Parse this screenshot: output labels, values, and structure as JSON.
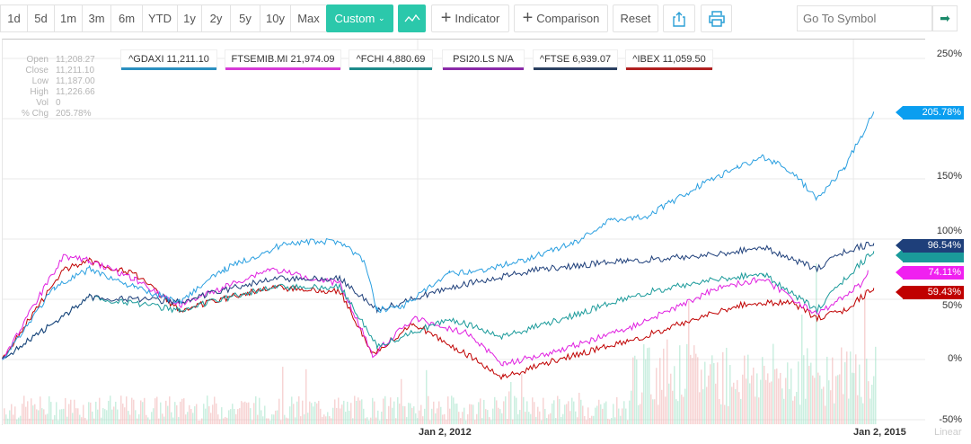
{
  "toolbar": {
    "ranges": [
      "1d",
      "5d",
      "1m",
      "3m",
      "6m",
      "YTD",
      "1y",
      "2y",
      "5y",
      "10y",
      "Max"
    ],
    "custom": "Custom",
    "indicator": "Indicator",
    "comparison": "Comparison",
    "reset": "Reset",
    "search_placeholder": "Go To Symbol"
  },
  "info": {
    "open_label": "Open",
    "open": "11,208.27",
    "close_label": "Close",
    "close": "11,211.10",
    "low_label": "Low",
    "low": "11,187.00",
    "high_label": "High",
    "high": "11,226.66",
    "vol_label": "Vol",
    "vol": "0",
    "chg_label": "% Chg",
    "chg": "205.78%"
  },
  "legend": [
    {
      "label": "^GDAXI 11,211.10",
      "color": "#2a8fc0"
    },
    {
      "label": "FTSEMIB.MI 21,974.09",
      "color": "#d63ad6"
    },
    {
      "label": "^FCHI 4,880.69",
      "color": "#1d8a8a"
    },
    {
      "label": "PSI20.LS N/A",
      "color": "#8a2aa8"
    },
    {
      "label": "^FTSE 6,939.07",
      "color": "#2a3f60"
    },
    {
      "label": "^IBEX 11,059.50",
      "color": "#b02020"
    }
  ],
  "chart_data": {
    "type": "line",
    "ylabel": "% change",
    "ylim": [
      -50,
      250
    ],
    "yticks": [
      "250%",
      "150%",
      "100%",
      "50%",
      "0%",
      "-50%"
    ],
    "xlim": [
      2009.14,
      2015.3
    ],
    "xticks": [
      {
        "x": 2012.0,
        "label": "Jan 2, 2012"
      },
      {
        "x": 2015.0,
        "label": "Jan 2, 2015"
      }
    ],
    "scale_label": "Linear",
    "series": [
      {
        "name": "^GDAXI",
        "color": "#2a9fe0",
        "last": "205.78%",
        "x": [
          2009.14,
          2009.5,
          2009.74,
          2010.05,
          2010.36,
          2010.67,
          2011.1,
          2011.47,
          2011.63,
          2011.72,
          2011.91,
          2012.22,
          2012.46,
          2012.71,
          2013.08,
          2013.33,
          2013.58,
          2013.95,
          2014.2,
          2014.38,
          2014.57,
          2014.75,
          2014.94,
          2015.06,
          2015.14
        ],
        "y": [
          0,
          60,
          75,
          60,
          48,
          75,
          97,
          98,
          82,
          41,
          45,
          71,
          75,
          82,
          97,
          116,
          119,
          145,
          160,
          168,
          157,
          133,
          160,
          187,
          205.78
        ]
      },
      {
        "name": "^FTSE",
        "color": "#1e3f7a",
        "last": "96.54%",
        "x": [
          2009.14,
          2009.74,
          2010.36,
          2010.98,
          2011.47,
          2011.72,
          2012.22,
          2012.84,
          2013.45,
          2013.95,
          2014.38,
          2014.75,
          2014.94,
          2015.14
        ],
        "y": [
          0,
          52,
          48,
          67,
          67,
          41,
          60,
          75,
          82,
          86,
          93,
          75,
          90,
          96.54
        ]
      },
      {
        "name": "^FCHI",
        "color": "#1a9a9a",
        "last": "",
        "x": [
          2009.14,
          2009.74,
          2010.36,
          2010.98,
          2011.47,
          2011.72,
          2012.22,
          2012.59,
          2013.08,
          2013.58,
          2014.07,
          2014.38,
          2014.75,
          2014.94,
          2015.14
        ],
        "y": [
          0,
          52,
          41,
          60,
          60,
          11,
          34,
          19,
          37,
          56,
          67,
          71,
          41,
          67,
          90
        ]
      },
      {
        "name": "FTSEMIB.MI",
        "color": "#e020e0",
        "last": "74.11%",
        "x": [
          2009.14,
          2009.56,
          2009.74,
          2010.05,
          2010.36,
          2010.98,
          2011.47,
          2011.69,
          2011.97,
          2012.34,
          2012.59,
          2012.96,
          2013.45,
          2013.82,
          2014.07,
          2014.38,
          2014.75,
          2015.06,
          2015.1
        ],
        "y": [
          0,
          86,
          82,
          67,
          45,
          75,
          63,
          4,
          34,
          22,
          -4,
          7,
          26,
          45,
          60,
          67,
          37,
          63,
          74.11
        ]
      },
      {
        "name": "^IBEX",
        "color": "#c00000",
        "last": "59.43%",
        "x": [
          2009.14,
          2009.56,
          2009.74,
          2010.05,
          2010.36,
          2010.98,
          2011.47,
          2011.69,
          2011.97,
          2012.34,
          2012.59,
          2012.96,
          2013.45,
          2013.82,
          2014.2,
          2014.57,
          2014.75,
          2014.94,
          2015.14
        ],
        "y": [
          0,
          75,
          82,
          71,
          41,
          60,
          56,
          4,
          30,
          4,
          -15,
          0,
          15,
          30,
          45,
          48,
          34,
          41,
          59.43
        ]
      }
    ]
  }
}
